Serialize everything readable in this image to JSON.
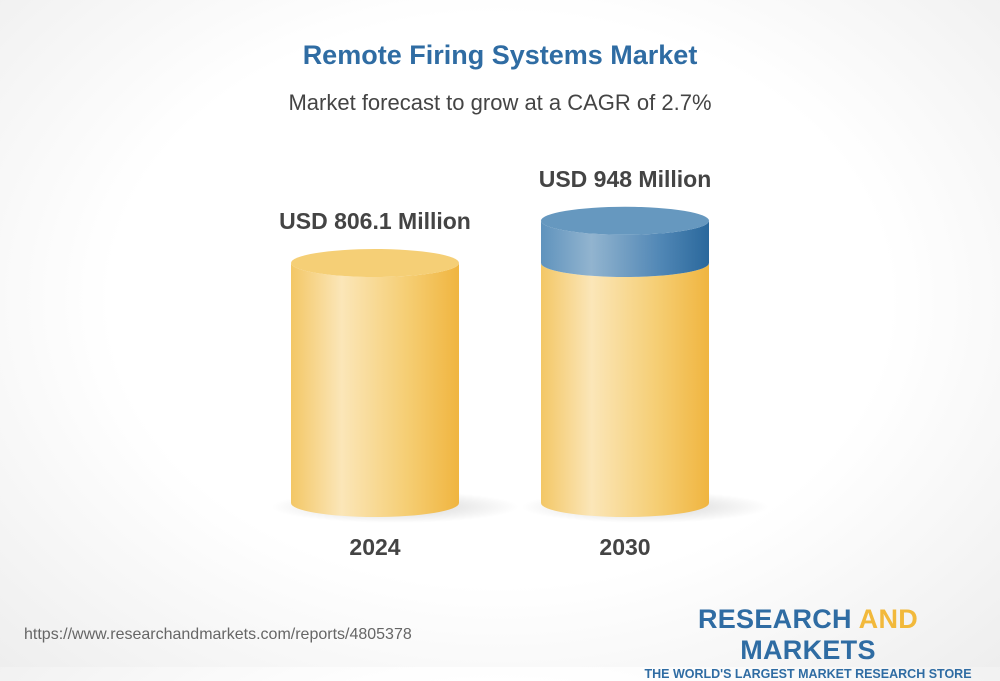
{
  "chart_data": {
    "type": "bar",
    "style": "3d-cylinder",
    "title": "Remote Firing Systems Market",
    "subtitle": "Market forecast to grow at a CAGR of 2.7%",
    "categories": [
      "2024",
      "2030"
    ],
    "values": [
      806.1,
      948
    ],
    "unit": "USD Million",
    "data_labels": [
      "USD 806.1 Million",
      "USD 948 Million"
    ],
    "colors": {
      "base": "#f2b93b",
      "growth": "#2f6ca3",
      "title": "#2f6ca3"
    }
  },
  "footer": {
    "url": "https://www.researchandmarkets.com/reports/4805378"
  },
  "logo": {
    "part1": "RESEARCH ",
    "part2": "AND",
    "part3": " MARKETS",
    "tagline": "THE WORLD'S LARGEST MARKET RESEARCH STORE"
  }
}
